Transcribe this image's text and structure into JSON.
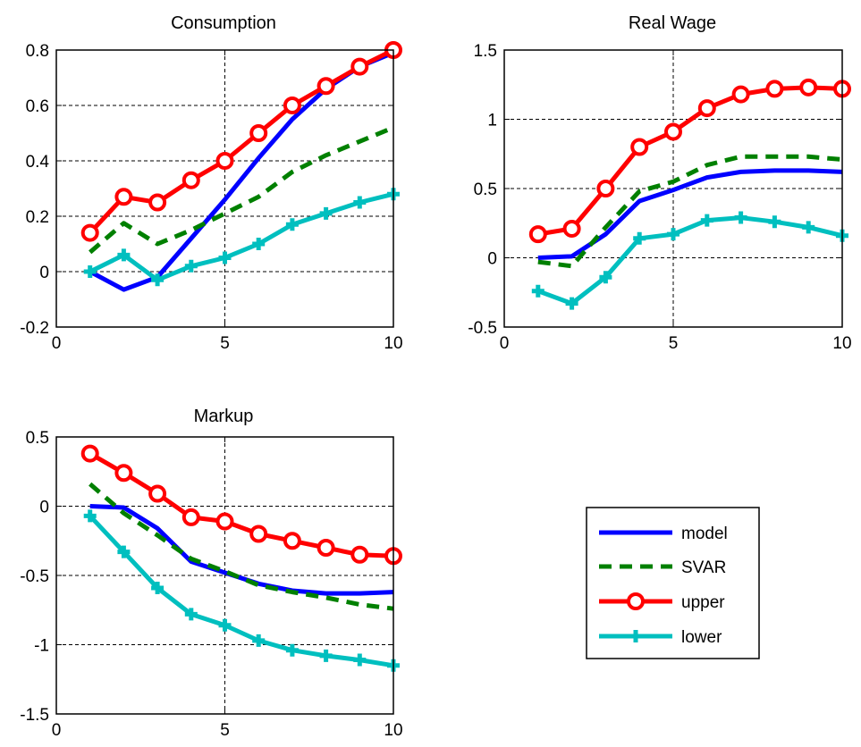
{
  "figure": {
    "panels": [
      {
        "id": "consumption",
        "title": "Consumption"
      },
      {
        "id": "real-wage",
        "title": "Real Wage"
      },
      {
        "id": "markup",
        "title": "Markup"
      }
    ],
    "legend": {
      "placement": "lower-right (in empty fourth panel slot)",
      "entries": [
        {
          "label": "model",
          "color": "#0000ff",
          "style": "solid"
        },
        {
          "label": "SVAR",
          "color": "#008000",
          "style": "dashed"
        },
        {
          "label": "upper",
          "color": "#ff0000",
          "style": "solid",
          "marker": "circle"
        },
        {
          "label": "lower",
          "color": "#00bfbf",
          "style": "solid",
          "marker": "plus"
        }
      ]
    }
  },
  "chart_data": [
    {
      "type": "line",
      "title": "Consumption",
      "xlabel": "",
      "ylabel": "",
      "xlim": [
        0,
        10
      ],
      "ylim": [
        -0.2,
        0.8
      ],
      "xticks": [
        0,
        5,
        10
      ],
      "yticks": [
        -0.2,
        0,
        0.2,
        0.4,
        0.6,
        0.8
      ],
      "xtick_labels": [
        "0",
        "5",
        "10"
      ],
      "ytick_labels": [
        "-0.2",
        "0",
        "0.2",
        "0.4",
        "0.6",
        "0.8"
      ],
      "grid": "dashed at x=5 and y ticks",
      "x": [
        1,
        2,
        3,
        4,
        5,
        6,
        7,
        8,
        9,
        10
      ],
      "series": [
        {
          "name": "model",
          "values": [
            0.0,
            -0.065,
            -0.02,
            0.12,
            0.26,
            0.41,
            0.55,
            0.66,
            0.74,
            0.79
          ]
        },
        {
          "name": "SVAR",
          "values": [
            0.07,
            0.175,
            0.1,
            0.15,
            0.21,
            0.27,
            0.36,
            0.42,
            0.47,
            0.52
          ]
        },
        {
          "name": "upper",
          "values": [
            0.14,
            0.27,
            0.25,
            0.33,
            0.4,
            0.5,
            0.6,
            0.67,
            0.74,
            0.8
          ]
        },
        {
          "name": "lower",
          "values": [
            0.0,
            0.06,
            -0.03,
            0.02,
            0.05,
            0.1,
            0.17,
            0.21,
            0.25,
            0.28
          ]
        }
      ]
    },
    {
      "type": "line",
      "title": "Real Wage",
      "xlabel": "",
      "ylabel": "",
      "xlim": [
        0,
        10
      ],
      "ylim": [
        -0.5,
        1.5
      ],
      "xticks": [
        0,
        5,
        10
      ],
      "yticks": [
        -0.5,
        0,
        0.5,
        1,
        1.5
      ],
      "xtick_labels": [
        "0",
        "5",
        "10"
      ],
      "ytick_labels": [
        "-0.5",
        "0",
        "0.5",
        "1",
        "1.5"
      ],
      "grid": "dashed at x=5 and y ticks",
      "x": [
        1,
        2,
        3,
        4,
        5,
        6,
        7,
        8,
        9,
        10
      ],
      "series": [
        {
          "name": "model",
          "values": [
            0.0,
            0.01,
            0.17,
            0.41,
            0.49,
            0.58,
            0.62,
            0.63,
            0.63,
            0.62
          ]
        },
        {
          "name": "SVAR",
          "values": [
            -0.03,
            -0.06,
            0.22,
            0.48,
            0.55,
            0.67,
            0.73,
            0.73,
            0.73,
            0.71
          ]
        },
        {
          "name": "upper",
          "values": [
            0.17,
            0.21,
            0.5,
            0.8,
            0.91,
            1.08,
            1.18,
            1.22,
            1.23,
            1.22
          ]
        },
        {
          "name": "lower",
          "values": [
            -0.24,
            -0.33,
            -0.14,
            0.14,
            0.17,
            0.27,
            0.29,
            0.26,
            0.22,
            0.16
          ]
        }
      ]
    },
    {
      "type": "line",
      "title": "Markup",
      "xlabel": "",
      "ylabel": "",
      "xlim": [
        0,
        10
      ],
      "ylim": [
        -1.5,
        0.5
      ],
      "xticks": [
        0,
        5,
        10
      ],
      "yticks": [
        -1.5,
        -1,
        -0.5,
        0,
        0.5
      ],
      "xtick_labels": [
        "0",
        "5",
        "10"
      ],
      "ytick_labels": [
        "-1.5",
        "-1",
        "-0.5",
        "0",
        "0.5"
      ],
      "grid": "dashed at x=5 and y ticks",
      "x": [
        1,
        2,
        3,
        4,
        5,
        6,
        7,
        8,
        9,
        10
      ],
      "series": [
        {
          "name": "model",
          "values": [
            0.0,
            -0.01,
            -0.16,
            -0.4,
            -0.48,
            -0.56,
            -0.61,
            -0.63,
            -0.63,
            -0.62
          ]
        },
        {
          "name": "SVAR",
          "values": [
            0.16,
            -0.05,
            -0.21,
            -0.38,
            -0.47,
            -0.57,
            -0.62,
            -0.66,
            -0.71,
            -0.74
          ]
        },
        {
          "name": "upper",
          "values": [
            0.38,
            0.24,
            0.09,
            -0.08,
            -0.11,
            -0.2,
            -0.25,
            -0.3,
            -0.35,
            -0.36
          ]
        },
        {
          "name": "lower",
          "values": [
            -0.07,
            -0.33,
            -0.59,
            -0.78,
            -0.86,
            -0.97,
            -1.04,
            -1.08,
            -1.11,
            -1.15
          ]
        }
      ]
    }
  ]
}
